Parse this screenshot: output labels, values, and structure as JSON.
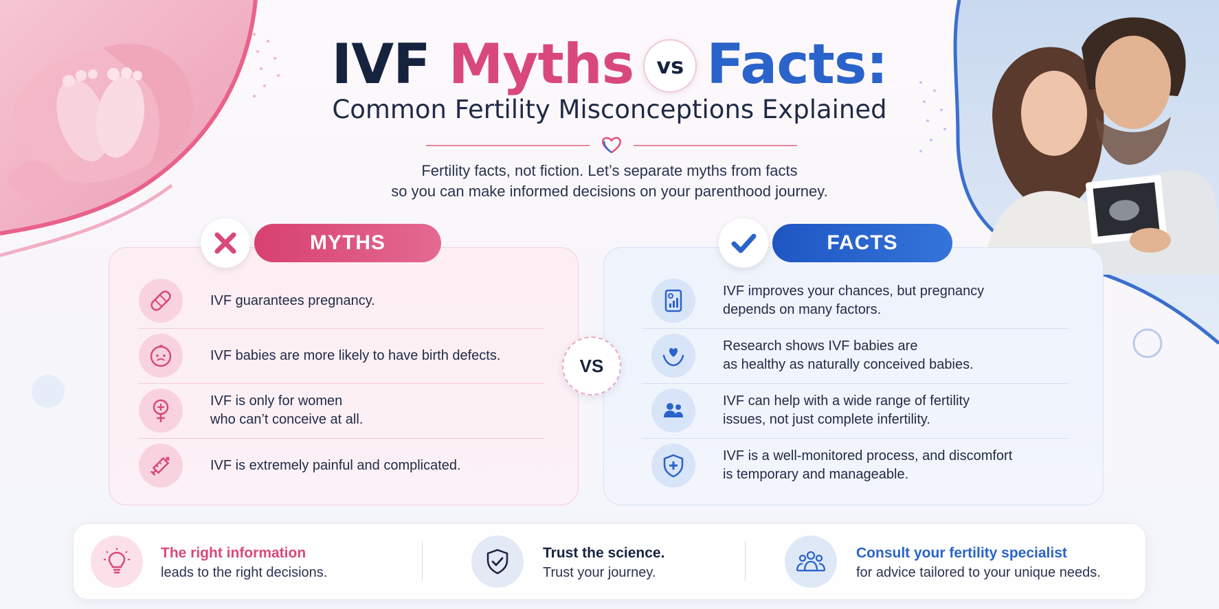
{
  "header": {
    "title_ivf": "IVF",
    "title_myths": "Myths",
    "title_vs": "vs",
    "title_facts": "Facts:",
    "subtitle": "Common Fertility Misconceptions Explained",
    "intro_line1": "Fertility facts, not fiction. Let’s separate myths from facts",
    "intro_line2": "so you can make informed decisions on your parenthood journey."
  },
  "myths": {
    "label": "MYTHS",
    "items": [
      {
        "icon": "bandage-icon",
        "text": "IVF guarantees pregnancy."
      },
      {
        "icon": "baby-face-icon",
        "text": "IVF babies are more likely to have birth defects."
      },
      {
        "icon": "female-symbol-icon",
        "text": "IVF is only for women\nwho can’t conceive at all."
      },
      {
        "icon": "syringe-icon",
        "text": "IVF is extremely painful and complicated."
      }
    ]
  },
  "middle_vs": "VS",
  "facts": {
    "label": "FACTS",
    "items": [
      {
        "icon": "report-chart-icon",
        "text": "IVF improves your chances, but pregnancy\ndepends on many factors."
      },
      {
        "icon": "heart-hands-icon",
        "text": "Research shows IVF babies are\nas healthy as naturally conceived babies."
      },
      {
        "icon": "people-icon",
        "text": "IVF can help with a wide range of fertility\nissues, not just complete infertility."
      },
      {
        "icon": "shield-plus-icon",
        "text": "IVF is a well-monitored process, and discomfort\nis temporary and manageable."
      }
    ]
  },
  "footer": [
    {
      "icon": "lightbulb-icon",
      "title": "The right information",
      "subtitle": "leads to the right decisions."
    },
    {
      "icon": "shield-check-icon",
      "title": "Trust the science.",
      "subtitle": "Trust your journey."
    },
    {
      "icon": "group-icon",
      "title": "Consult your fertility specialist",
      "subtitle": "for advice tailored to your unique needs."
    }
  ],
  "colors": {
    "myth_accent": "#d9487a",
    "fact_accent": "#2a63c9",
    "navy": "#16233f"
  }
}
